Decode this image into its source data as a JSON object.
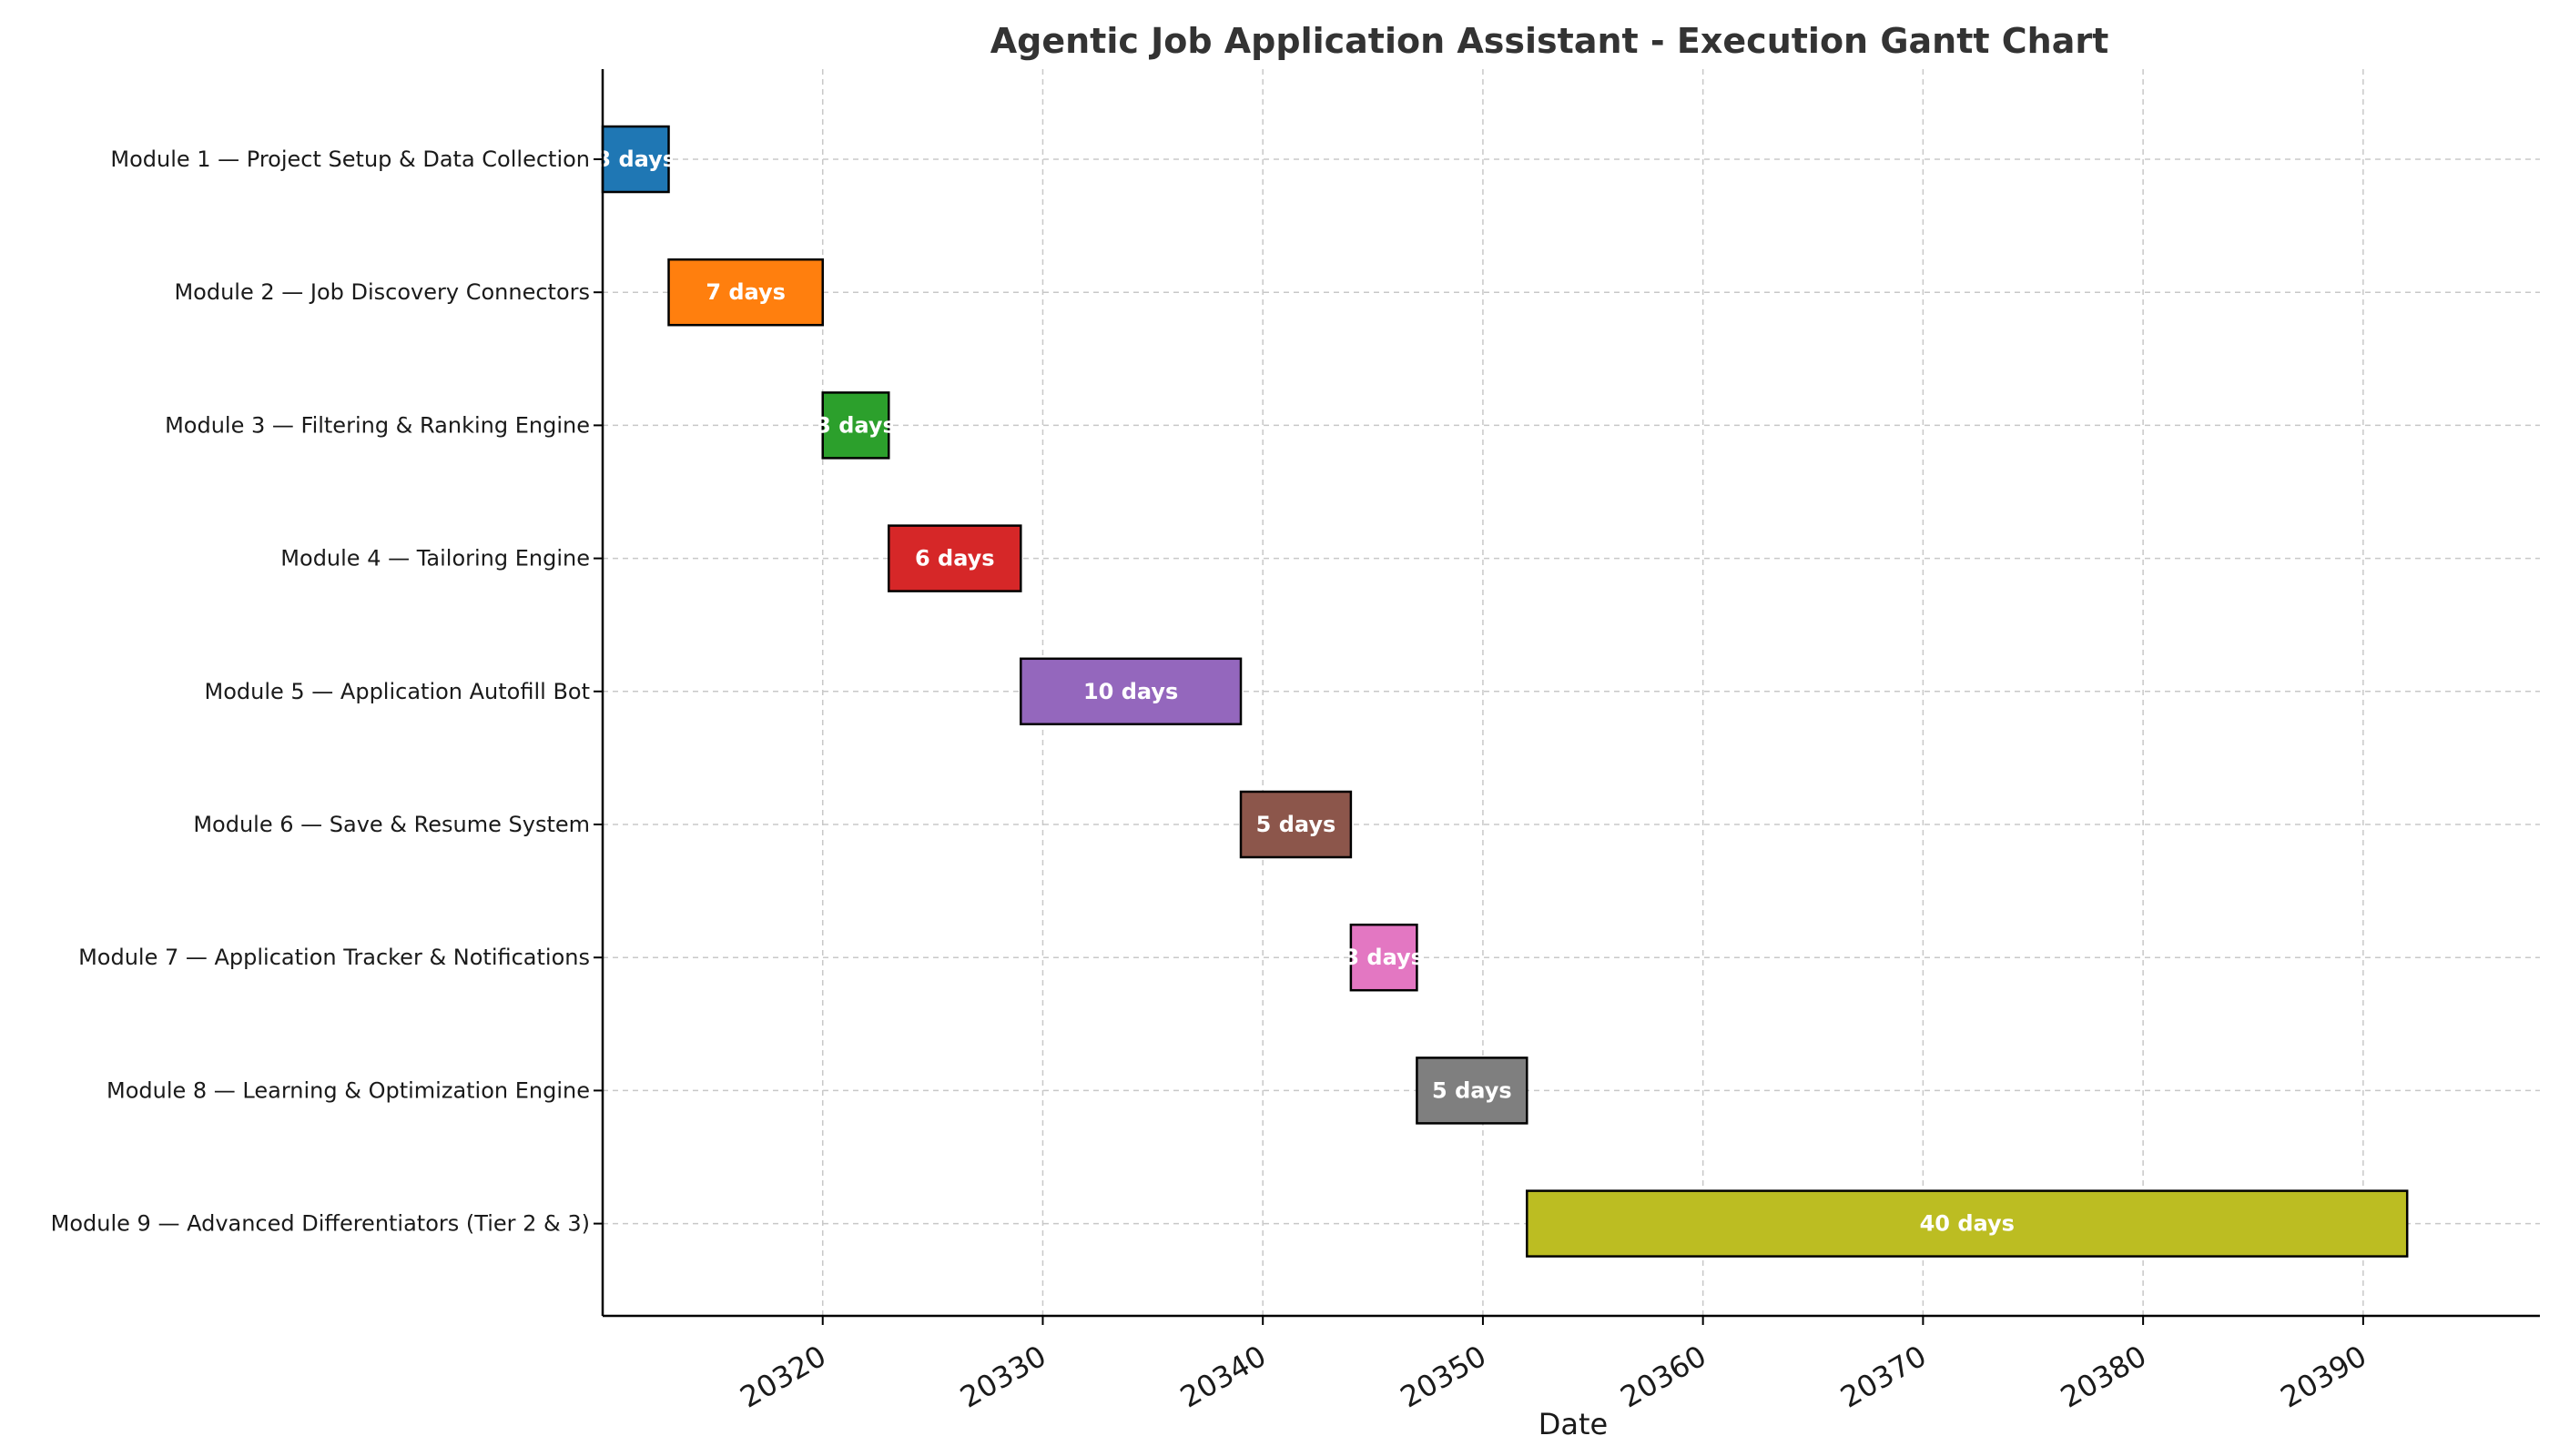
{
  "chart_data": {
    "type": "gantt",
    "title": "Agentic Job Application Assistant - Execution Gantt Chart",
    "xlabel": "Date",
    "ylabel": "",
    "xlim": [
      20310,
      20396
    ],
    "xticks": [
      20320,
      20330,
      20340,
      20350,
      20360,
      20370,
      20380,
      20390
    ],
    "grid": true,
    "tasks": [
      {
        "name": "Module 1 — Project Setup & Data Collection",
        "start": 20310,
        "duration": 3,
        "label": "3 days",
        "color": "#1f77b4"
      },
      {
        "name": "Module 2 — Job Discovery Connectors",
        "start": 20313,
        "duration": 7,
        "label": "7 days",
        "color": "#ff7f0e"
      },
      {
        "name": "Module 3 — Filtering & Ranking Engine",
        "start": 20320,
        "duration": 3,
        "label": "3 days",
        "color": "#2ca02c"
      },
      {
        "name": "Module 4 — Tailoring Engine",
        "start": 20323,
        "duration": 6,
        "label": "6 days",
        "color": "#d62728"
      },
      {
        "name": "Module 5 — Application Autofill Bot",
        "start": 20329,
        "duration": 10,
        "label": "10 days",
        "color": "#9467bd"
      },
      {
        "name": "Module 6 — Save & Resume System",
        "start": 20339,
        "duration": 5,
        "label": "5 days",
        "color": "#8c564b"
      },
      {
        "name": "Module 7 — Application Tracker & Notifications",
        "start": 20344,
        "duration": 3,
        "label": "3 days",
        "color": "#e377c2"
      },
      {
        "name": "Module 8 — Learning & Optimization Engine",
        "start": 20347,
        "duration": 5,
        "label": "5 days",
        "color": "#7f7f7f"
      },
      {
        "name": "Module 9 — Advanced Differentiators (Tier 2 & 3)",
        "start": 20352,
        "duration": 40,
        "label": "40 days",
        "color": "#bcbd22"
      }
    ]
  }
}
